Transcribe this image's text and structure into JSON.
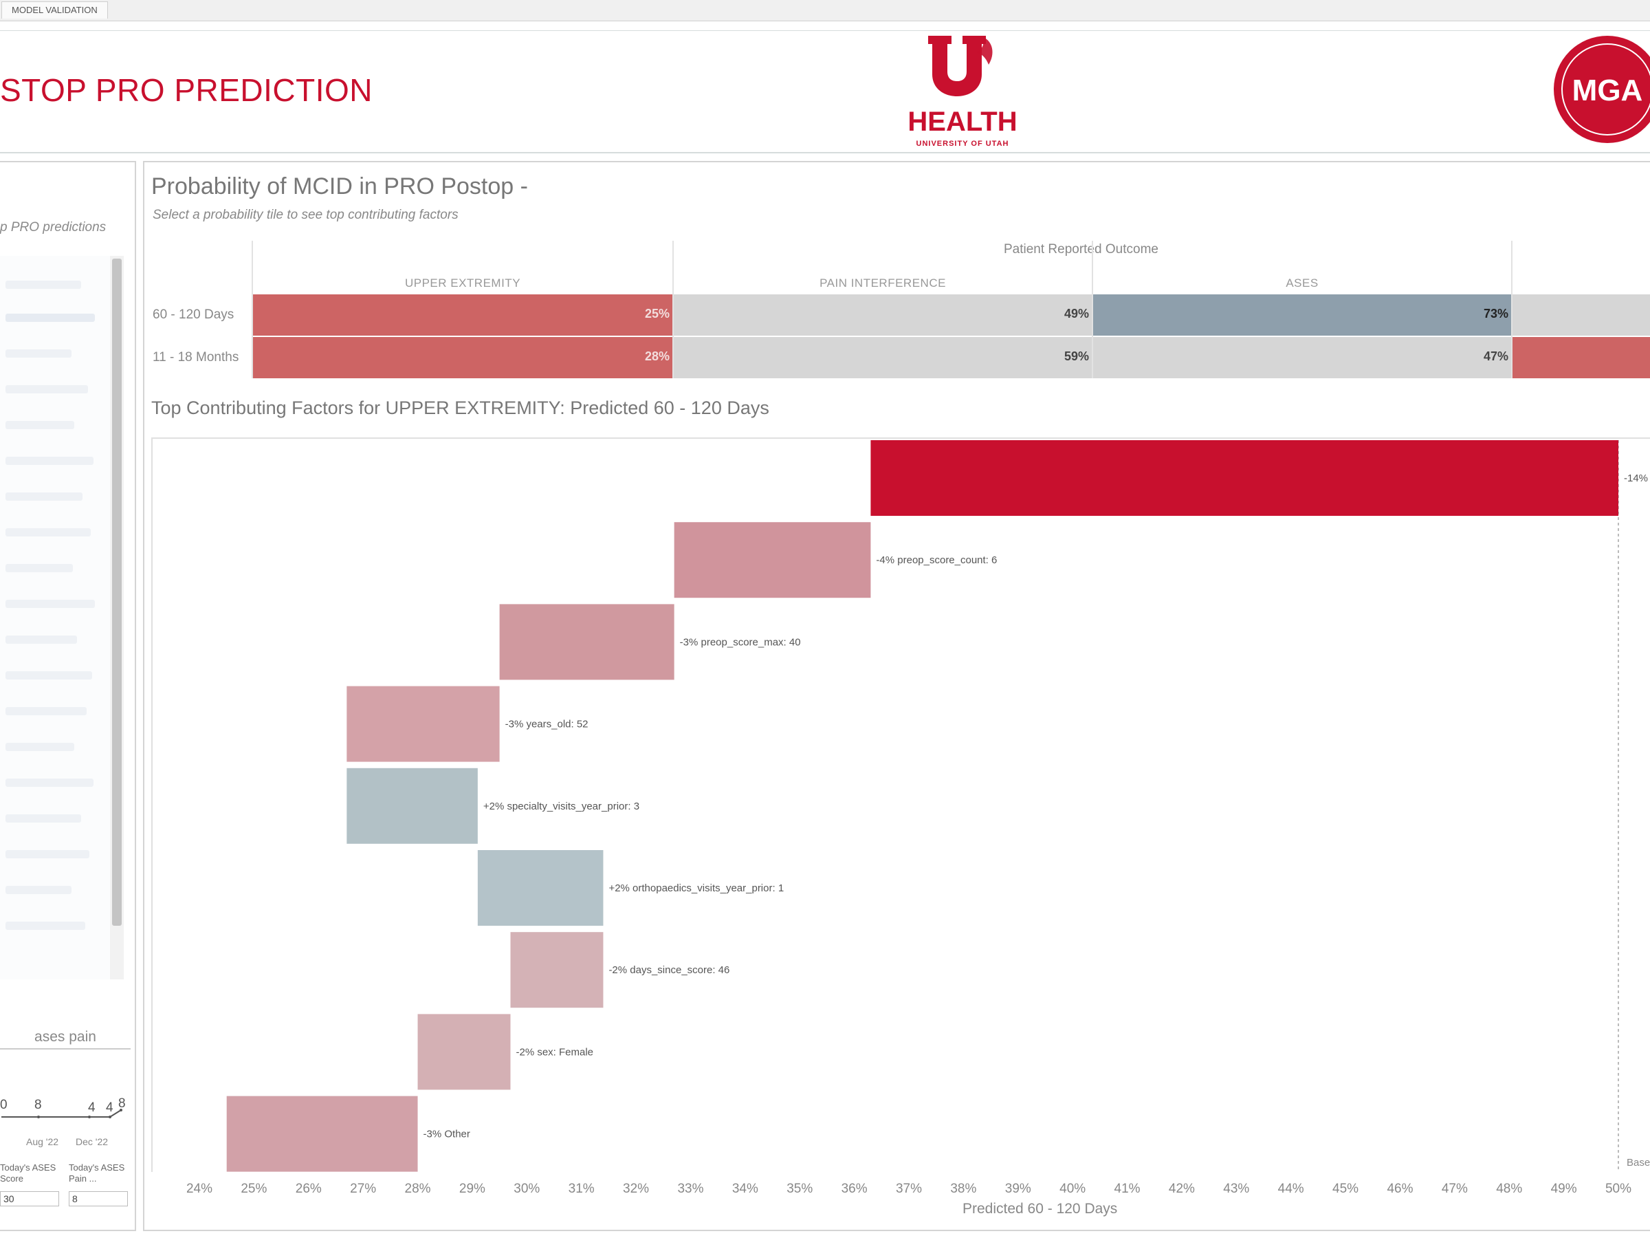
{
  "tab_strip": {
    "tabs": [
      "MODEL VALIDATION"
    ]
  },
  "header": {
    "title": "STOP PRO PREDICTION",
    "logo_center": {
      "name": "HEALTH",
      "subtitle": "UNIVERSITY OF UTAH"
    },
    "logo_right": {
      "name": "MGA"
    }
  },
  "left_panel": {
    "subtitle": "p PRO predictions",
    "trend_label": "ases pain",
    "trend_values": [
      "0",
      "8",
      "4",
      "4",
      "8"
    ],
    "trend_dates": [
      "Aug '22",
      "Dec '22"
    ],
    "inputs": [
      {
        "label": "Today's ASES Score",
        "value": "30"
      },
      {
        "label": "Today's ASES Pain ...",
        "value": "8"
      }
    ]
  },
  "main": {
    "title": "Probability of MCID in PRO Postop -",
    "subtitle": "Select a probability tile to see top contributing factors",
    "pro_header": "Patient Reported Outcome",
    "columns": [
      "UPPER EXTREMITY",
      "PAIN INTERFERENCE",
      "ASES"
    ],
    "rows": [
      {
        "label": "60 - 120 Days",
        "values": [
          "25%",
          "49%",
          "73%"
        ]
      },
      {
        "label": "11 - 18 Months",
        "values": [
          "28%",
          "59%",
          "47%"
        ]
      }
    ],
    "colors": {
      "red": "#cd6464",
      "gray": "#d6d6d6",
      "blue_gray": "#8e9fac",
      "highlight_red": "#c8102e"
    },
    "factors_title": "Top Contributing Factors for UPPER EXTREMITY: Predicted 60 - 120 Days",
    "base_label": "Base"
  },
  "chart_data": {
    "type": "waterfall",
    "xlabel": "Predicted 60 - 120 Days",
    "xlim": [
      24,
      50
    ],
    "xticks": [
      "24%",
      "25%",
      "26%",
      "27%",
      "28%",
      "29%",
      "30%",
      "31%",
      "32%",
      "33%",
      "34%",
      "35%",
      "36%",
      "37%",
      "38%",
      "39%",
      "40%",
      "41%",
      "42%",
      "43%",
      "44%",
      "45%",
      "46%",
      "47%",
      "48%",
      "49%",
      "50%"
    ],
    "bars": [
      {
        "label": "-14%",
        "start": 50.0,
        "end": 36.3,
        "color": "#c8102e"
      },
      {
        "label": "-4% preop_score_count: 6",
        "start": 36.3,
        "end": 32.7,
        "color": "#d0949c"
      },
      {
        "label": "-3% preop_score_max: 40",
        "start": 32.7,
        "end": 29.5,
        "color": "#d0999f"
      },
      {
        "label": "-3% years_old: 52",
        "start": 29.5,
        "end": 26.7,
        "color": "#d4a2a8"
      },
      {
        "label": "+2% specialty_visits_year_prior: 3",
        "start": 26.7,
        "end": 29.1,
        "color": "#b2c1c6"
      },
      {
        "label": "+2% orthopaedics_visits_year_prior: 1",
        "start": 29.1,
        "end": 31.4,
        "color": "#b4c3c9"
      },
      {
        "label": "-2% days_since_score: 46",
        "start": 31.4,
        "end": 29.7,
        "color": "#d4b2b6"
      },
      {
        "label": "-2% sex: Female",
        "start": 29.7,
        "end": 28.0,
        "color": "#d4b0b4"
      },
      {
        "label": "-3% Other",
        "start": 28.0,
        "end": 24.5,
        "color": "#d2a1a8"
      }
    ],
    "base_value": 50.0
  }
}
